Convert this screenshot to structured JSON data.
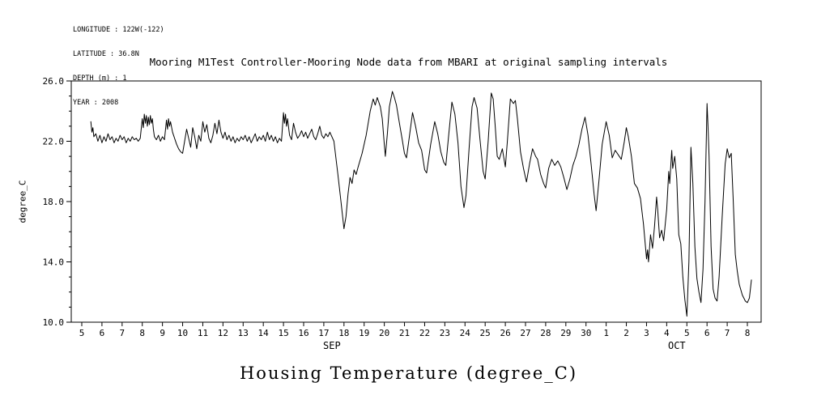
{
  "meta": {
    "lines": [
      "LONGITUDE : 122W(-122)",
      "LATITUDE : 36.8N",
      "DEPTH (m) : 1",
      "YEAR : 2008"
    ]
  },
  "title": "Mooring M1Test Controller-Mooring Node data from MBARI at original sampling intervals",
  "bottom_title": "Housing Temperature (degree_C)",
  "chart_data": {
    "type": "line",
    "title": "Mooring M1Test Controller-Mooring Node data from MBARI at original sampling intervals",
    "xlabel": "",
    "ylabel": "degree_C",
    "ylim": [
      10.0,
      26.0
    ],
    "y_minor_step": 1.0,
    "grid": false,
    "legend": "none",
    "line_color": "#000000",
    "y_ticks": [
      {
        "v": 10.0,
        "label": "10.0"
      },
      {
        "v": 14.0,
        "label": "14.0"
      },
      {
        "v": 18.0,
        "label": "18.0"
      },
      {
        "v": 22.0,
        "label": "22.0"
      },
      {
        "v": 26.0,
        "label": "26.0"
      }
    ],
    "x_tick_labels": [
      "5",
      "6",
      "7",
      "8",
      "9",
      "10",
      "11",
      "12",
      "13",
      "14",
      "15",
      "16",
      "17",
      "18",
      "19",
      "20",
      "21",
      "22",
      "23",
      "24",
      "25",
      "26",
      "27",
      "28",
      "29",
      "30",
      "1",
      "2",
      "3",
      "4",
      "5",
      "6",
      "7",
      "8"
    ],
    "month_labels": [
      {
        "t": 12.4,
        "label": "SEP"
      },
      {
        "t": 29.5,
        "label": "OCT"
      }
    ],
    "x_unit": "days since Sep 5 2008",
    "points": [
      [
        0.45,
        23.3
      ],
      [
        0.5,
        22.6
      ],
      [
        0.55,
        22.9
      ],
      [
        0.6,
        22.3
      ],
      [
        0.7,
        22.5
      ],
      [
        0.8,
        22.0
      ],
      [
        0.9,
        22.4
      ],
      [
        1.0,
        21.9
      ],
      [
        1.1,
        22.3
      ],
      [
        1.2,
        22.0
      ],
      [
        1.3,
        22.5
      ],
      [
        1.4,
        22.1
      ],
      [
        1.5,
        22.3
      ],
      [
        1.6,
        21.9
      ],
      [
        1.7,
        22.2
      ],
      [
        1.8,
        22.0
      ],
      [
        1.9,
        22.4
      ],
      [
        2.0,
        22.1
      ],
      [
        2.1,
        22.3
      ],
      [
        2.2,
        21.9
      ],
      [
        2.3,
        22.2
      ],
      [
        2.4,
        22.0
      ],
      [
        2.5,
        22.3
      ],
      [
        2.6,
        22.1
      ],
      [
        2.7,
        22.2
      ],
      [
        2.8,
        22.0
      ],
      [
        2.9,
        22.2
      ],
      [
        3.0,
        23.5
      ],
      [
        3.05,
        22.9
      ],
      [
        3.1,
        23.8
      ],
      [
        3.15,
        23.2
      ],
      [
        3.2,
        23.7
      ],
      [
        3.25,
        23.0
      ],
      [
        3.3,
        23.6
      ],
      [
        3.35,
        23.1
      ],
      [
        3.4,
        23.7
      ],
      [
        3.45,
        23.2
      ],
      [
        3.5,
        23.5
      ],
      [
        3.55,
        22.8
      ],
      [
        3.6,
        22.3
      ],
      [
        3.7,
        22.1
      ],
      [
        3.8,
        22.4
      ],
      [
        3.9,
        22.0
      ],
      [
        4.0,
        22.3
      ],
      [
        4.1,
        22.1
      ],
      [
        4.2,
        23.4
      ],
      [
        4.25,
        22.8
      ],
      [
        4.3,
        23.5
      ],
      [
        4.35,
        23.0
      ],
      [
        4.4,
        23.3
      ],
      [
        4.5,
        22.6
      ],
      [
        4.6,
        22.2
      ],
      [
        4.7,
        21.8
      ],
      [
        4.8,
        21.5
      ],
      [
        4.9,
        21.3
      ],
      [
        5.0,
        21.2
      ],
      [
        5.1,
        22.0
      ],
      [
        5.2,
        22.8
      ],
      [
        5.3,
        22.2
      ],
      [
        5.4,
        21.6
      ],
      [
        5.5,
        22.9
      ],
      [
        5.6,
        22.3
      ],
      [
        5.7,
        21.5
      ],
      [
        5.8,
        22.4
      ],
      [
        5.9,
        22.0
      ],
      [
        6.0,
        23.3
      ],
      [
        6.1,
        22.6
      ],
      [
        6.2,
        23.1
      ],
      [
        6.3,
        22.2
      ],
      [
        6.4,
        21.9
      ],
      [
        6.5,
        22.4
      ],
      [
        6.6,
        23.2
      ],
      [
        6.7,
        22.5
      ],
      [
        6.8,
        23.4
      ],
      [
        6.9,
        22.6
      ],
      [
        7.0,
        22.2
      ],
      [
        7.1,
        22.6
      ],
      [
        7.2,
        22.1
      ],
      [
        7.3,
        22.4
      ],
      [
        7.4,
        22.0
      ],
      [
        7.5,
        22.3
      ],
      [
        7.6,
        21.9
      ],
      [
        7.7,
        22.2
      ],
      [
        7.8,
        22.0
      ],
      [
        7.9,
        22.3
      ],
      [
        8.0,
        22.1
      ],
      [
        8.1,
        22.4
      ],
      [
        8.2,
        22.0
      ],
      [
        8.3,
        22.3
      ],
      [
        8.4,
        21.9
      ],
      [
        8.5,
        22.2
      ],
      [
        8.6,
        22.5
      ],
      [
        8.7,
        22.0
      ],
      [
        8.8,
        22.3
      ],
      [
        8.9,
        22.1
      ],
      [
        9.0,
        22.4
      ],
      [
        9.1,
        22.0
      ],
      [
        9.2,
        22.6
      ],
      [
        9.3,
        22.1
      ],
      [
        9.4,
        22.4
      ],
      [
        9.5,
        22.0
      ],
      [
        9.6,
        22.3
      ],
      [
        9.7,
        21.9
      ],
      [
        9.8,
        22.2
      ],
      [
        9.9,
        22.0
      ],
      [
        10.0,
        23.9
      ],
      [
        10.05,
        23.2
      ],
      [
        10.1,
        23.8
      ],
      [
        10.15,
        23.0
      ],
      [
        10.2,
        23.5
      ],
      [
        10.3,
        22.4
      ],
      [
        10.4,
        22.1
      ],
      [
        10.5,
        23.2
      ],
      [
        10.6,
        22.6
      ],
      [
        10.7,
        22.2
      ],
      [
        10.8,
        22.4
      ],
      [
        10.9,
        22.7
      ],
      [
        11.0,
        22.3
      ],
      [
        11.1,
        22.6
      ],
      [
        11.2,
        22.2
      ],
      [
        11.3,
        22.5
      ],
      [
        11.4,
        22.8
      ],
      [
        11.5,
        22.3
      ],
      [
        11.6,
        22.1
      ],
      [
        11.7,
        22.5
      ],
      [
        11.8,
        23.0
      ],
      [
        11.9,
        22.4
      ],
      [
        12.0,
        22.2
      ],
      [
        12.1,
        22.5
      ],
      [
        12.2,
        22.3
      ],
      [
        12.3,
        22.6
      ],
      [
        12.5,
        22.0
      ],
      [
        12.7,
        19.8
      ],
      [
        12.85,
        18.0
      ],
      [
        13.0,
        16.2
      ],
      [
        13.1,
        17.0
      ],
      [
        13.2,
        18.5
      ],
      [
        13.3,
        19.6
      ],
      [
        13.4,
        19.2
      ],
      [
        13.5,
        20.1
      ],
      [
        13.6,
        19.8
      ],
      [
        13.7,
        20.3
      ],
      [
        13.9,
        21.2
      ],
      [
        14.1,
        22.4
      ],
      [
        14.3,
        24.0
      ],
      [
        14.45,
        24.8
      ],
      [
        14.55,
        24.4
      ],
      [
        14.65,
        24.9
      ],
      [
        14.8,
        24.3
      ],
      [
        14.9,
        23.5
      ],
      [
        15.0,
        21.8
      ],
      [
        15.05,
        21.0
      ],
      [
        15.15,
        22.5
      ],
      [
        15.25,
        24.3
      ],
      [
        15.4,
        25.3
      ],
      [
        15.5,
        24.9
      ],
      [
        15.6,
        24.4
      ],
      [
        15.75,
        23.2
      ],
      [
        15.9,
        22.0
      ],
      [
        16.0,
        21.2
      ],
      [
        16.1,
        20.9
      ],
      [
        16.25,
        22.4
      ],
      [
        16.4,
        23.9
      ],
      [
        16.55,
        23.0
      ],
      [
        16.7,
        21.9
      ],
      [
        16.85,
        21.4
      ],
      [
        17.0,
        20.1
      ],
      [
        17.1,
        19.9
      ],
      [
        17.3,
        21.8
      ],
      [
        17.5,
        23.3
      ],
      [
        17.65,
        22.5
      ],
      [
        17.8,
        21.3
      ],
      [
        17.95,
        20.6
      ],
      [
        18.05,
        20.4
      ],
      [
        18.2,
        22.5
      ],
      [
        18.35,
        24.6
      ],
      [
        18.5,
        23.8
      ],
      [
        18.65,
        21.9
      ],
      [
        18.8,
        19.0
      ],
      [
        18.95,
        17.6
      ],
      [
        19.05,
        18.4
      ],
      [
        19.2,
        21.5
      ],
      [
        19.35,
        24.3
      ],
      [
        19.45,
        24.9
      ],
      [
        19.6,
        24.2
      ],
      [
        19.75,
        22.0
      ],
      [
        19.9,
        20.0
      ],
      [
        20.0,
        19.5
      ],
      [
        20.15,
        22.0
      ],
      [
        20.3,
        25.2
      ],
      [
        20.4,
        24.8
      ],
      [
        20.5,
        23.0
      ],
      [
        20.6,
        21.0
      ],
      [
        20.7,
        20.8
      ],
      [
        20.85,
        21.5
      ],
      [
        21.0,
        20.3
      ],
      [
        21.1,
        22.0
      ],
      [
        21.25,
        24.8
      ],
      [
        21.4,
        24.5
      ],
      [
        21.5,
        24.7
      ],
      [
        21.6,
        23.5
      ],
      [
        21.75,
        21.3
      ],
      [
        21.9,
        20.2
      ],
      [
        22.05,
        19.3
      ],
      [
        22.2,
        20.5
      ],
      [
        22.35,
        21.5
      ],
      [
        22.5,
        21.0
      ],
      [
        22.6,
        20.8
      ],
      [
        22.75,
        19.8
      ],
      [
        22.9,
        19.2
      ],
      [
        23.0,
        18.9
      ],
      [
        23.15,
        20.2
      ],
      [
        23.3,
        20.8
      ],
      [
        23.45,
        20.4
      ],
      [
        23.6,
        20.7
      ],
      [
        23.75,
        20.3
      ],
      [
        23.9,
        19.6
      ],
      [
        24.05,
        18.8
      ],
      [
        24.2,
        19.5
      ],
      [
        24.35,
        20.4
      ],
      [
        24.5,
        21.0
      ],
      [
        24.65,
        21.8
      ],
      [
        24.8,
        22.8
      ],
      [
        24.95,
        23.6
      ],
      [
        25.1,
        22.4
      ],
      [
        25.25,
        20.5
      ],
      [
        25.4,
        18.5
      ],
      [
        25.5,
        17.4
      ],
      [
        25.65,
        19.5
      ],
      [
        25.8,
        21.8
      ],
      [
        26.0,
        23.3
      ],
      [
        26.15,
        22.4
      ],
      [
        26.3,
        20.9
      ],
      [
        26.45,
        21.4
      ],
      [
        26.6,
        21.1
      ],
      [
        26.75,
        20.8
      ],
      [
        26.9,
        22.0
      ],
      [
        27.0,
        22.9
      ],
      [
        27.1,
        22.3
      ],
      [
        27.25,
        21.0
      ],
      [
        27.4,
        19.2
      ],
      [
        27.55,
        18.9
      ],
      [
        27.7,
        18.2
      ],
      [
        27.85,
        16.5
      ],
      [
        28.0,
        14.2
      ],
      [
        28.05,
        14.8
      ],
      [
        28.1,
        14.0
      ],
      [
        28.2,
        15.8
      ],
      [
        28.3,
        14.9
      ],
      [
        28.4,
        16.4
      ],
      [
        28.5,
        18.3
      ],
      [
        28.55,
        17.5
      ],
      [
        28.65,
        15.6
      ],
      [
        28.75,
        16.1
      ],
      [
        28.85,
        15.4
      ],
      [
        29.0,
        17.5
      ],
      [
        29.1,
        20.0
      ],
      [
        29.15,
        19.2
      ],
      [
        29.25,
        21.4
      ],
      [
        29.3,
        20.2
      ],
      [
        29.4,
        21.0
      ],
      [
        29.5,
        19.5
      ],
      [
        29.6,
        15.8
      ],
      [
        29.7,
        15.2
      ],
      [
        29.8,
        13.0
      ],
      [
        29.9,
        11.5
      ],
      [
        30.0,
        10.4
      ],
      [
        30.1,
        14.0
      ],
      [
        30.2,
        21.6
      ],
      [
        30.3,
        19.2
      ],
      [
        30.4,
        15.0
      ],
      [
        30.5,
        12.9
      ],
      [
        30.6,
        12.0
      ],
      [
        30.7,
        11.3
      ],
      [
        30.8,
        13.5
      ],
      [
        30.9,
        18.0
      ],
      [
        31.0,
        24.5
      ],
      [
        31.05,
        23.0
      ],
      [
        31.1,
        21.0
      ],
      [
        31.2,
        15.0
      ],
      [
        31.3,
        12.2
      ],
      [
        31.4,
        11.6
      ],
      [
        31.5,
        11.4
      ],
      [
        31.6,
        13.0
      ],
      [
        31.75,
        17.0
      ],
      [
        31.9,
        20.5
      ],
      [
        32.0,
        21.5
      ],
      [
        32.1,
        20.9
      ],
      [
        32.2,
        21.2
      ],
      [
        32.3,
        18.0
      ],
      [
        32.4,
        14.5
      ],
      [
        32.5,
        13.4
      ],
      [
        32.6,
        12.5
      ],
      [
        32.75,
        11.8
      ],
      [
        32.9,
        11.4
      ],
      [
        33.0,
        11.3
      ],
      [
        33.1,
        11.6
      ],
      [
        33.2,
        12.8
      ]
    ]
  }
}
